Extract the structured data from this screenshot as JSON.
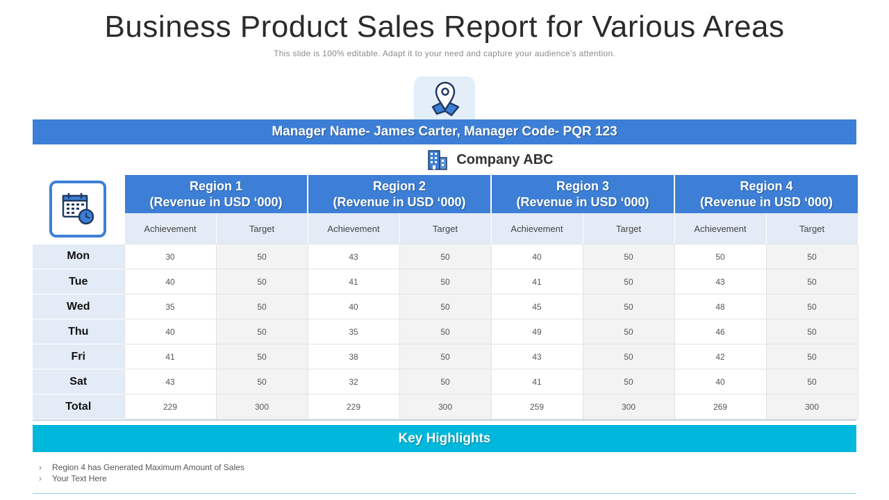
{
  "header": {
    "title": "Business Product Sales Report for Various Areas",
    "subtitle": "This slide is 100% editable. Adapt it to your need and capture your audience’s attention."
  },
  "manager_bar": "Manager Name- James Carter, Manager Code- PQR 123",
  "company": "Company ABC",
  "icons": {
    "location": "location-pin-icon",
    "building": "building-icon",
    "calendar": "calendar-clock-icon"
  },
  "colors": {
    "accent": "#3d7fd6",
    "highlight": "#00b8dc",
    "light": "#e3ebf6"
  },
  "table": {
    "regions": [
      {
        "name": "Region 1",
        "unit": "(Revenue in USD ‘000)"
      },
      {
        "name": "Region 2",
        "unit": "(Revenue in USD ‘000)"
      },
      {
        "name": "Region 3",
        "unit": "(Revenue in USD ‘000)"
      },
      {
        "name": "Region 4",
        "unit": "(Revenue in USD ‘000)"
      }
    ],
    "sub_headers": [
      "Achievement",
      "Target"
    ],
    "rows": [
      {
        "day": "Mon",
        "values": [
          "30",
          "50",
          "43",
          "50",
          "40",
          "50",
          "50",
          "50"
        ]
      },
      {
        "day": "Tue",
        "values": [
          "40",
          "50",
          "41",
          "50",
          "41",
          "50",
          "43",
          "50"
        ]
      },
      {
        "day": "Wed",
        "values": [
          "35",
          "50",
          "40",
          "50",
          "45",
          "50",
          "48",
          "50"
        ]
      },
      {
        "day": "Thu",
        "values": [
          "40",
          "50",
          "35",
          "50",
          "49",
          "50",
          "46",
          "50"
        ]
      },
      {
        "day": "Fri",
        "values": [
          "41",
          "50",
          "38",
          "50",
          "43",
          "50",
          "42",
          "50"
        ]
      },
      {
        "day": "Sat",
        "values": [
          "43",
          "50",
          "32",
          "50",
          "41",
          "50",
          "40",
          "50"
        ]
      },
      {
        "day": "Total",
        "values": [
          "229",
          "300",
          "229",
          "300",
          "259",
          "300",
          "269",
          "300"
        ]
      }
    ]
  },
  "key_highlights": {
    "title": "Key Highlights",
    "items": [
      "Region 4 has Generated Maximum Amount of Sales",
      "Your Text Here"
    ],
    "bullet": "›"
  }
}
